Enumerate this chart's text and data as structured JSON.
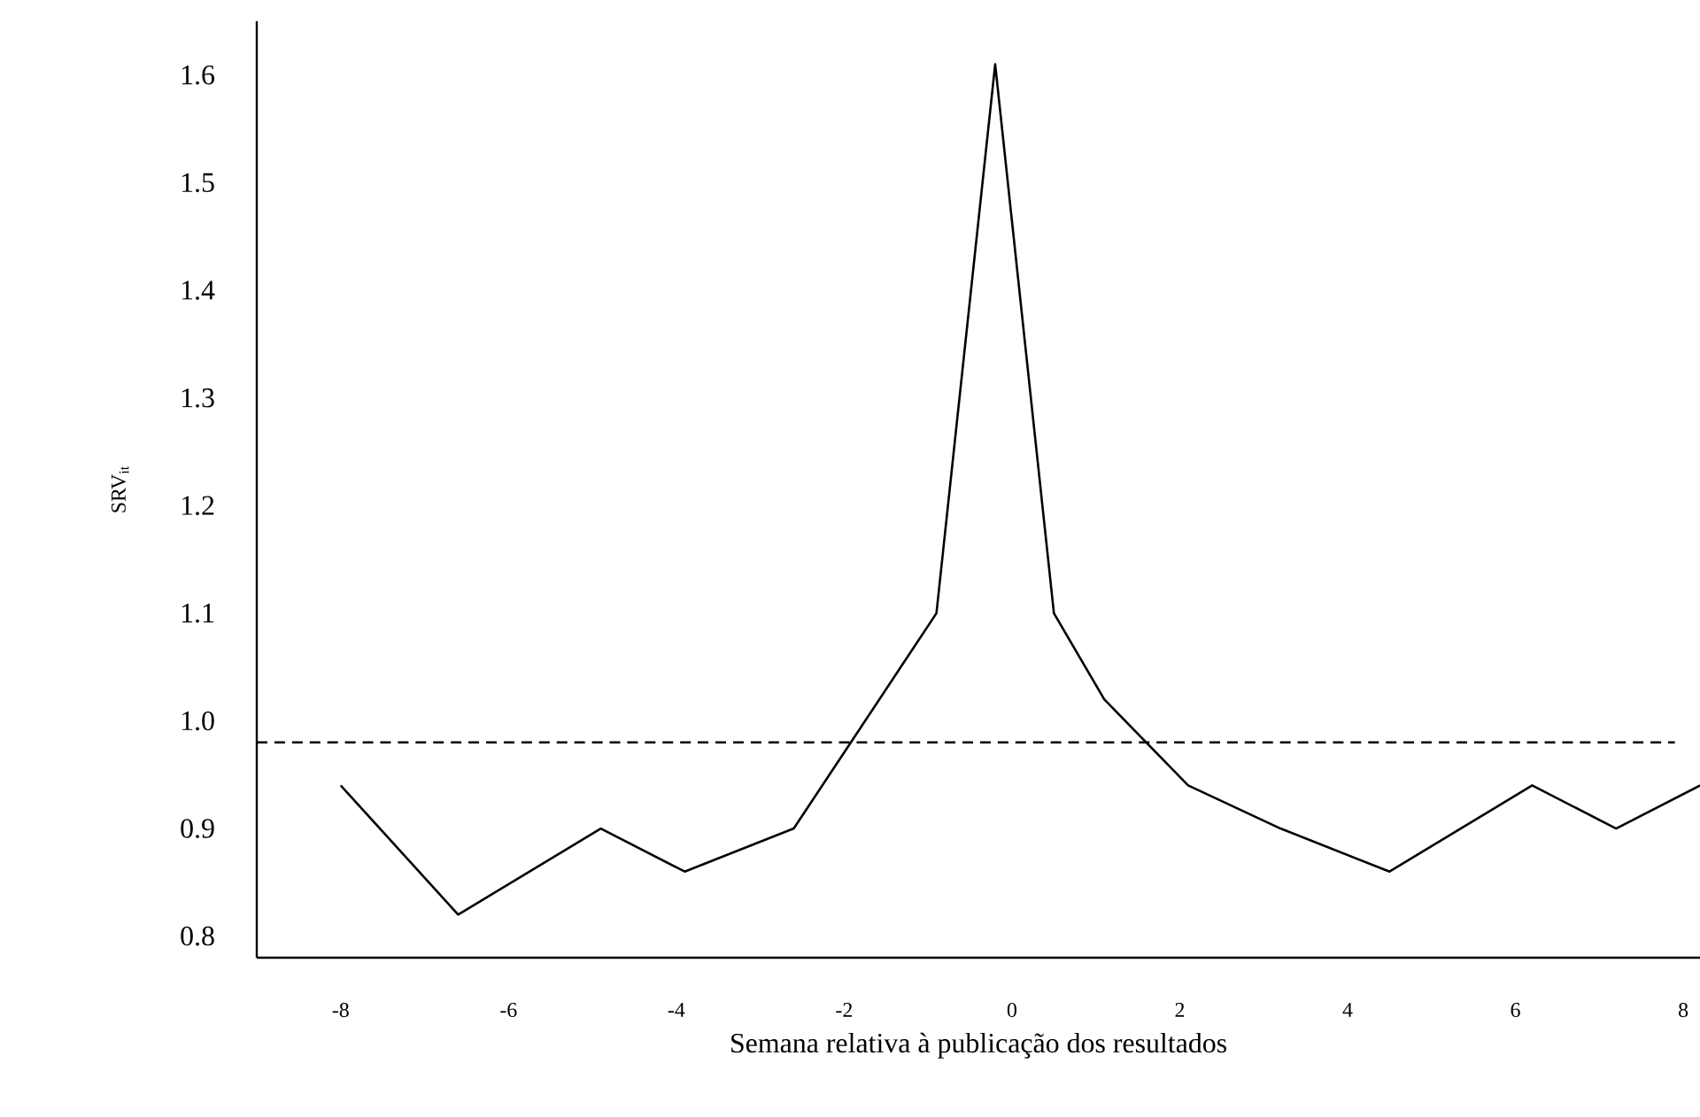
{
  "chart_data": {
    "type": "line",
    "xlabel": "Semana relativa à publicação dos resultados",
    "ylabel": "SRV$_{it}$",
    "x": [
      -8,
      -6.6,
      -4.9,
      -3.9,
      -2.6,
      -0.9,
      -0.2,
      0.5,
      1.1,
      2.1,
      3.2,
      4.5,
      6.2,
      7.2,
      8.2
    ],
    "series": [
      {
        "color": "#000000",
        "values": [
          0.94,
          0.82,
          0.9,
          0.86,
          0.9,
          1.1,
          1.61,
          1.1,
          1.02,
          0.94,
          0.9,
          0.86,
          0.94,
          0.9,
          0.94
        ]
      }
    ],
    "xlim": [
      -9,
      8.2
    ],
    "ylim": [
      0.78,
      1.65
    ],
    "xticks": [
      -8,
      -6,
      -4,
      -2,
      0,
      2,
      4,
      6,
      8
    ],
    "yticks": [
      {
        "value": 0.8,
        "label": "0.8"
      },
      {
        "value": 0.9,
        "label": "0.9"
      },
      {
        "value": 1.0,
        "label": "1.0"
      },
      {
        "value": 1.1,
        "label": "1.1"
      },
      {
        "value": 1.2,
        "label": "1.2"
      },
      {
        "value": 1.3,
        "label": "1.3"
      },
      {
        "value": 1.4,
        "label": "1.4"
      },
      {
        "value": 1.5,
        "label": "1.5"
      },
      {
        "value": 1.6,
        "label": "1.6"
      }
    ],
    "ref_lines": [
      {
        "axis": "y",
        "value": 0.98,
        "line_style": "dashed",
        "color": "#000000"
      }
    ],
    "grid": false,
    "marker": "none",
    "line_style": "solid"
  }
}
